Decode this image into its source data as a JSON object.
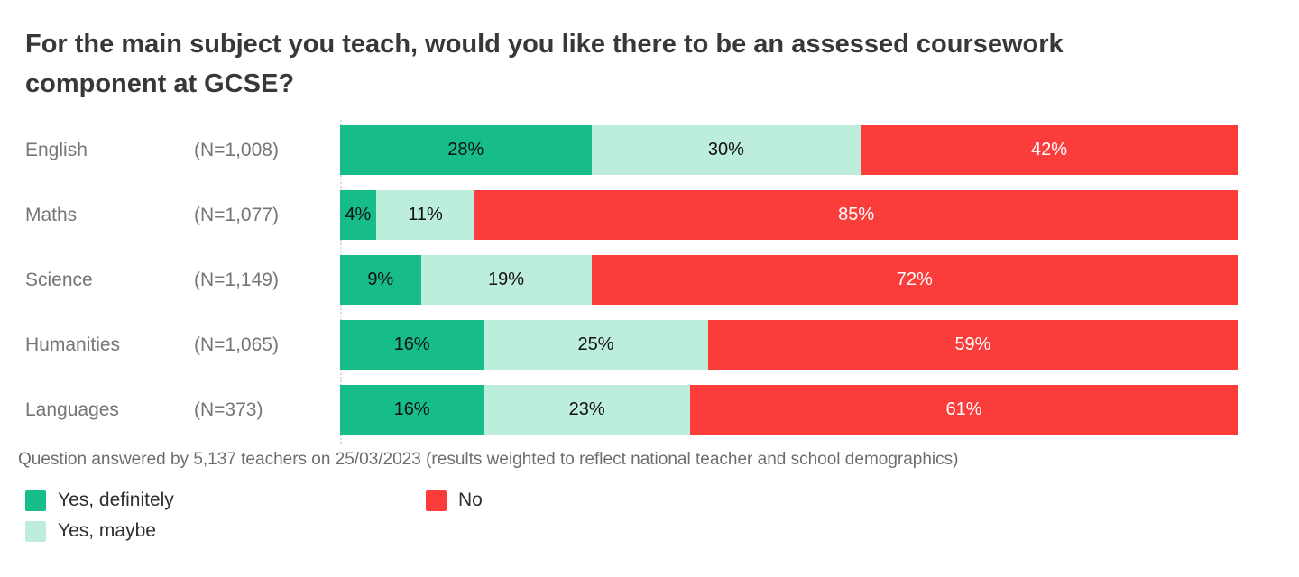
{
  "title": "For the main subject you teach, would you like there to be an assessed coursework component at GCSE?",
  "footnote": "Question answered by 5,137 teachers on 25/03/2023 (results weighted to reflect national teacher and school demographics)",
  "colors": {
    "yes_definitely": "#16BD8B",
    "yes_maybe": "#BDEDDB",
    "no": "#FA3C3A",
    "title_text": "#38383a",
    "label_text": "#757579",
    "footnote_text": "#6d6d71"
  },
  "chart_data": {
    "type": "bar",
    "orientation": "horizontal",
    "stacked": true,
    "xlim": [
      0,
      100
    ],
    "unit": "%",
    "categories": [
      "English",
      "Maths",
      "Science",
      "Humanities",
      "Languages"
    ],
    "sample_sizes": [
      "(N=1,008)",
      "(N=1,077)",
      "(N=1,149)",
      "(N=1,065)",
      "(N=373)"
    ],
    "series": [
      {
        "key": "yes-definitely",
        "name": "Yes, definitely",
        "values": [
          28,
          4,
          9,
          16,
          16
        ],
        "color": "#16BD8B",
        "text_color": "#111111"
      },
      {
        "key": "yes-maybe",
        "name": "Yes, maybe",
        "values": [
          30,
          11,
          19,
          25,
          23
        ],
        "color": "#BDEDDB",
        "text_color": "#111111"
      },
      {
        "key": "no",
        "name": "No",
        "values": [
          42,
          85,
          72,
          59,
          61
        ],
        "color": "#FA3C3A",
        "text_color": "#ffffff"
      }
    ],
    "legend_position": "bottom-left"
  },
  "legend": {
    "columns": [
      [
        {
          "key": "yes-definitely",
          "label": "Yes, definitely",
          "color": "#16BD8B"
        },
        {
          "key": "yes-maybe",
          "label": "Yes, maybe",
          "color": "#BDEDDB"
        }
      ],
      [
        {
          "key": "no",
          "label": "No",
          "color": "#FA3C3A"
        }
      ]
    ]
  }
}
